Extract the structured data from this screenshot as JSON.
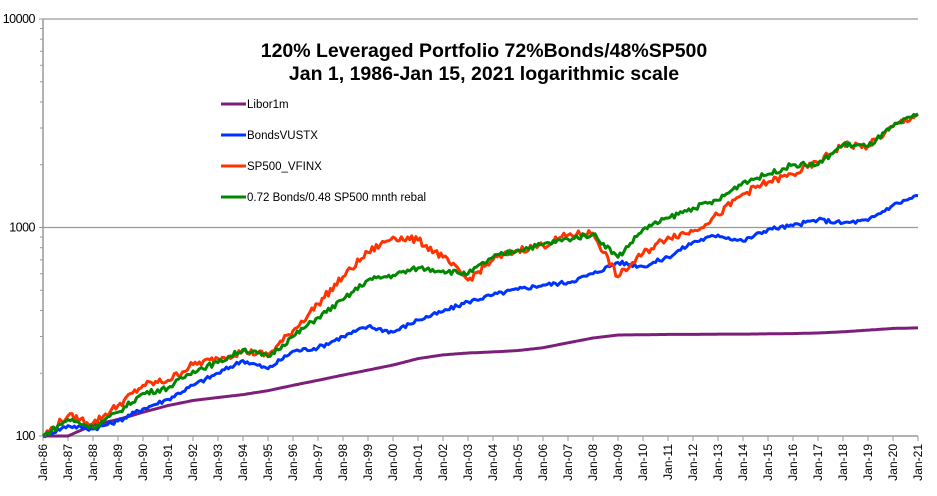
{
  "chart_data": {
    "type": "line",
    "title": "120% Leveraged Portfolio 72%Bonds/48%SP500",
    "subtitle": "Jan 1, 1986-Jan 15, 2021 logarithmic scale",
    "xlabel": "",
    "ylabel": "",
    "yscale": "log",
    "ylim": [
      100,
      10000
    ],
    "yticks": [
      "100",
      "1000",
      "10000"
    ],
    "grid": "horizontal major gridlines",
    "legend_position": "top-left (inside plot)",
    "x": [
      1986,
      1987,
      1988,
      1989,
      1990,
      1991,
      1992,
      1993,
      1994,
      1995,
      1996,
      1997,
      1998,
      1999,
      2000,
      2001,
      2002,
      2003,
      2004,
      2005,
      2006,
      2007,
      2008,
      2009,
      2010,
      2011,
      2012,
      2013,
      2014,
      2015,
      2016,
      2017,
      2018,
      2019,
      2020,
      2021
    ],
    "categories": [
      "Jan-86",
      "Jan-87",
      "Jan-88",
      "Jan-89",
      "Jan-90",
      "Jan-91",
      "Jan-92",
      "Jan-93",
      "Jan-94",
      "Jan-95",
      "Jan-96",
      "Jan-97",
      "Jan-98",
      "Jan-99",
      "Jan-00",
      "Jan-01",
      "Jan-02",
      "Jan-03",
      "Jan-04",
      "Jan-05",
      "Jan-06",
      "Jan-07",
      "Jan-08",
      "Jan-09",
      "Jan-10",
      "Jan-11",
      "Jan-12",
      "Jan-13",
      "Jan-14",
      "Jan-15",
      "Jan-16",
      "Jan-17",
      "Jan-18",
      "Jan-19",
      "Jan-20",
      "Jan-21"
    ],
    "series": [
      {
        "name": "Libor1m",
        "color": "#7B1F7A",
        "values": [
          100,
          100,
          113,
          120,
          130,
          140,
          148,
          153,
          158,
          165,
          175,
          185,
          196,
          207,
          219,
          235,
          245,
          250,
          253,
          257,
          265,
          280,
          295,
          305,
          306,
          307,
          307,
          308,
          308,
          309,
          310,
          312,
          316,
          322,
          328,
          330
        ]
      },
      {
        "name": "BondsVUSTX",
        "color": "#0033FF",
        "values": [
          100,
          112,
          108,
          118,
          135,
          150,
          175,
          200,
          230,
          210,
          255,
          265,
          300,
          335,
          315,
          360,
          395,
          440,
          475,
          505,
          530,
          545,
          600,
          680,
          650,
          720,
          850,
          920,
          860,
          980,
          1020,
          1090,
          1050,
          1080,
          1280,
          1420
        ]
      },
      {
        "name": "SP500_VFINX",
        "color": "#FF3300",
        "values": [
          100,
          125,
          115,
          140,
          175,
          185,
          220,
          235,
          255,
          245,
          320,
          430,
          580,
          760,
          900,
          870,
          720,
          560,
          700,
          780,
          820,
          920,
          940,
          580,
          750,
          900,
          960,
          1150,
          1450,
          1650,
          1800,
          2050,
          2500,
          2450,
          3050,
          3500
        ]
      },
      {
        "name": "0.72 Bonds/0.48 SP500 mnth rebal",
        "color": "#008800",
        "values": [
          100,
          120,
          110,
          130,
          160,
          170,
          205,
          225,
          260,
          240,
          300,
          370,
          450,
          560,
          590,
          640,
          620,
          600,
          720,
          780,
          830,
          880,
          930,
          720,
          980,
          1110,
          1240,
          1350,
          1650,
          1800,
          2000,
          2000,
          2500,
          2450,
          3050,
          3500
        ]
      }
    ]
  }
}
